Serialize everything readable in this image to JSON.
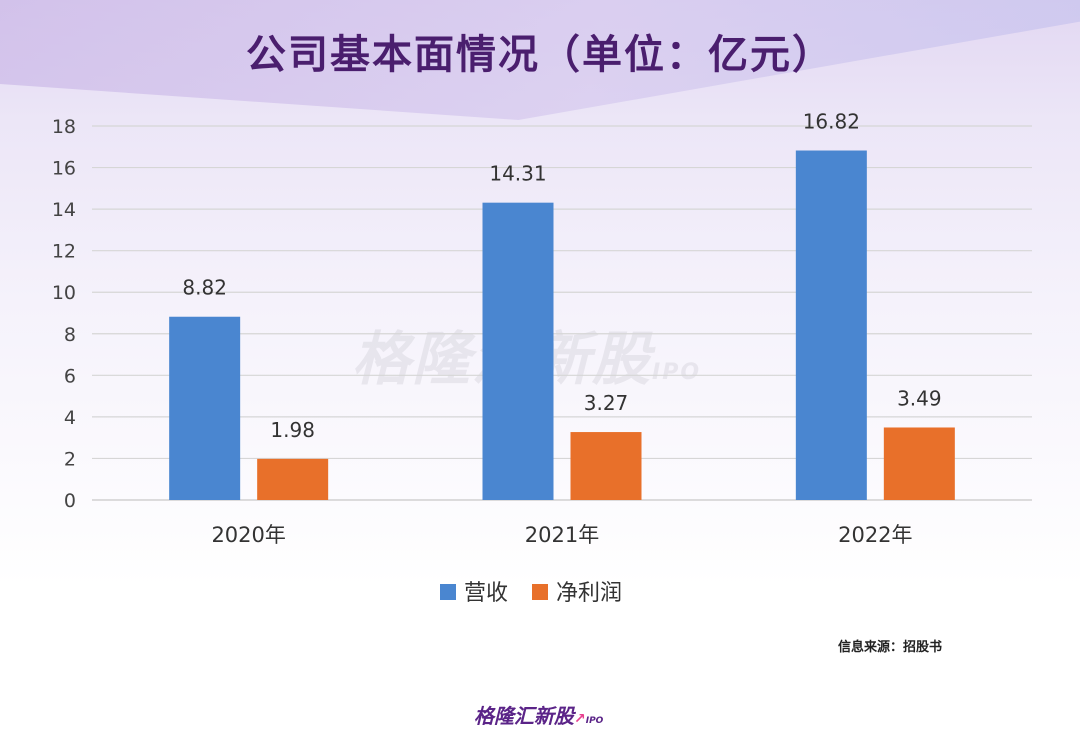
{
  "title": "公司基本面情况（单位：亿元）",
  "source_note": "信息来源：招股书",
  "watermark": {
    "text": "格隆汇新股",
    "sub": "IPO"
  },
  "logo": {
    "text": "格隆汇新股",
    "sub": "IPO"
  },
  "colors": {
    "revenue": "#4a86d0",
    "net_profit": "#e8702a",
    "title": "#4a1e6e"
  },
  "chart_data": {
    "type": "bar",
    "categories": [
      "2020年",
      "2021年",
      "2022年"
    ],
    "series": [
      {
        "name": "营收",
        "values": [
          8.82,
          14.31,
          16.82
        ],
        "color": "#4a86d0"
      },
      {
        "name": "净利润",
        "values": [
          1.98,
          3.27,
          3.49
        ],
        "color": "#e8702a"
      }
    ],
    "data_labels": [
      [
        "8.82",
        "14.31",
        "16.82"
      ],
      [
        "1.98",
        "3.27",
        "3.49"
      ]
    ],
    "yticks": [
      "0",
      "2",
      "4",
      "6",
      "8",
      "10",
      "12",
      "14",
      "16",
      "18"
    ],
    "ylim": [
      0,
      18
    ],
    "grid": true,
    "legend_position": "bottom-center"
  }
}
